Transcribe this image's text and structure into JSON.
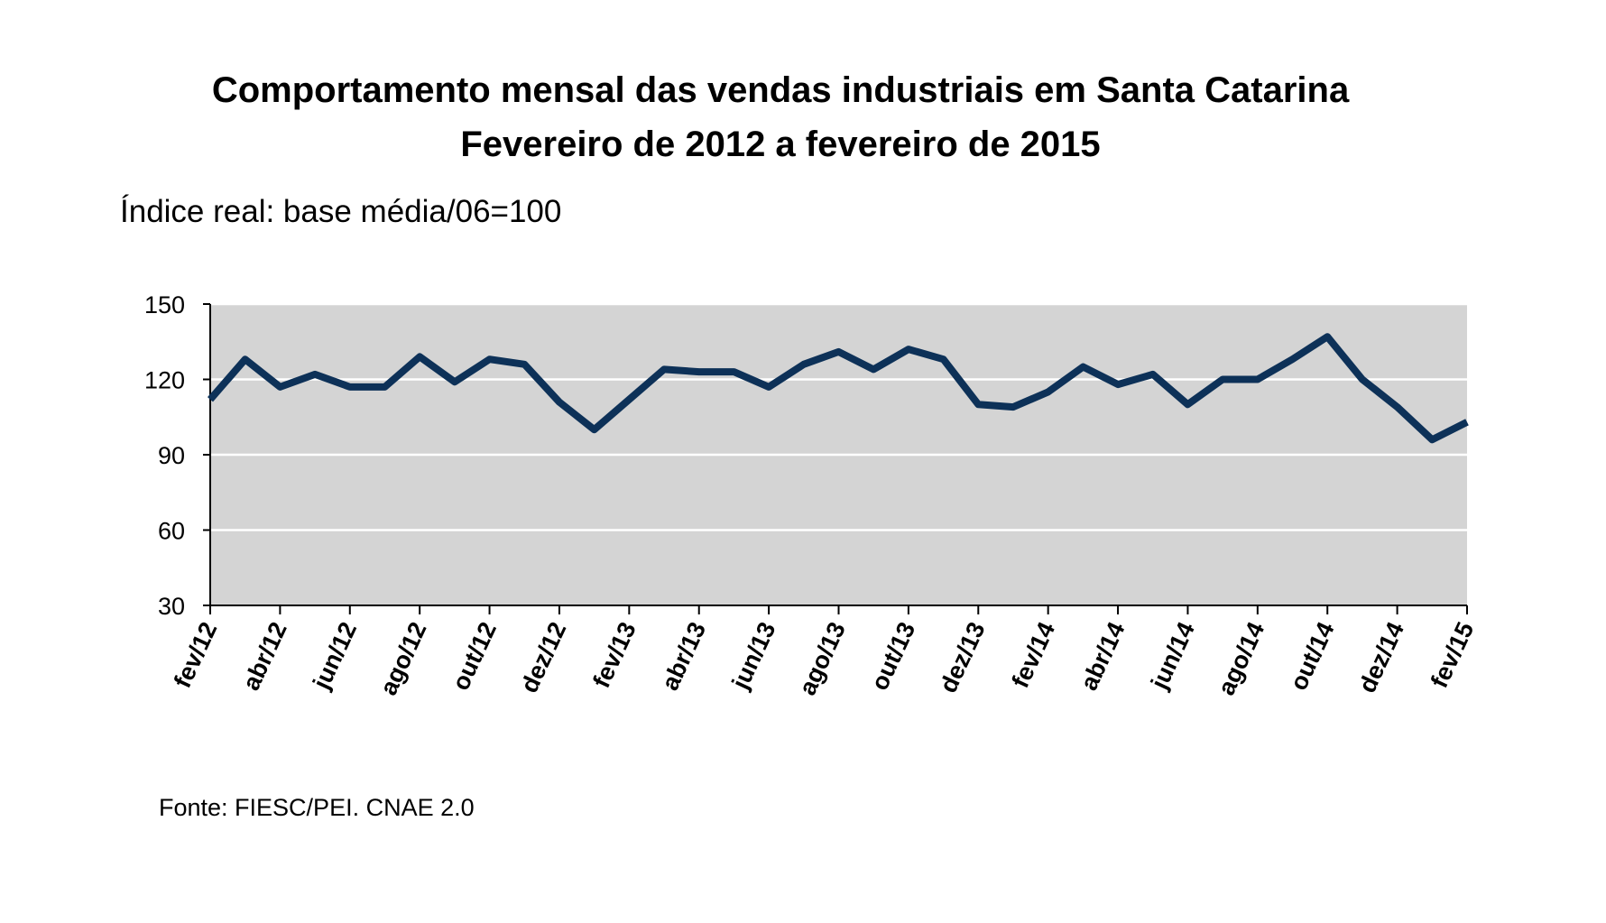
{
  "title_line1": "Comportamento mensal das vendas industriais em Santa Catarina",
  "title_line2": "Fevereiro de 2012 a fevereiro de 2015",
  "subtitle": "Índice real: base média/06=100",
  "source": "Fonte: FIESC/PEI. CNAE 2.0",
  "colors": {
    "line": "#0d3158",
    "plot_bg": "#d4d4d4",
    "grid": "#ffffff",
    "axis": "#000000"
  },
  "chart_data": {
    "type": "line",
    "title": "Comportamento mensal das vendas industriais em Santa Catarina",
    "subtitle": "Fevereiro de 2012 a fevereiro de 2015",
    "ylabel": "Índice real: base média/06=100",
    "xlabel": "",
    "ylim": [
      30,
      150
    ],
    "yticks": [
      30,
      60,
      90,
      120,
      150
    ],
    "grid": true,
    "legend": "none",
    "xtick_labels": [
      "fev/12",
      "abr/12",
      "jun/12",
      "ago/12",
      "out/12",
      "dez/12",
      "fev/13",
      "abr/13",
      "jun/13",
      "ago/13",
      "out/13",
      "dez/13",
      "fev/14",
      "abr/14",
      "jun/14",
      "ago/14",
      "out/14",
      "dez/14",
      "fev/15"
    ],
    "series": [
      {
        "name": "Vendas industriais",
        "x": [
          "fev/12",
          "mar/12",
          "abr/12",
          "mai/12",
          "jun/12",
          "jul/12",
          "ago/12",
          "set/12",
          "out/12",
          "nov/12",
          "dez/12",
          "jan/13",
          "fev/13",
          "mar/13",
          "abr/13",
          "mai/13",
          "jun/13",
          "jul/13",
          "ago/13",
          "set/13",
          "out/13",
          "nov/13",
          "dez/13",
          "jan/14",
          "fev/14",
          "mar/14",
          "abr/14",
          "mai/14",
          "jun/14",
          "jul/14",
          "ago/14",
          "set/14",
          "out/14",
          "nov/14",
          "dez/14",
          "jan/15",
          "fev/15"
        ],
        "values": [
          112,
          128,
          117,
          122,
          117,
          117,
          129,
          119,
          128,
          126,
          111,
          100,
          112,
          124,
          123,
          123,
          117,
          126,
          131,
          124,
          132,
          128,
          110,
          109,
          115,
          125,
          118,
          122,
          110,
          120,
          120,
          128,
          137,
          120,
          109,
          96,
          103
        ]
      }
    ]
  }
}
